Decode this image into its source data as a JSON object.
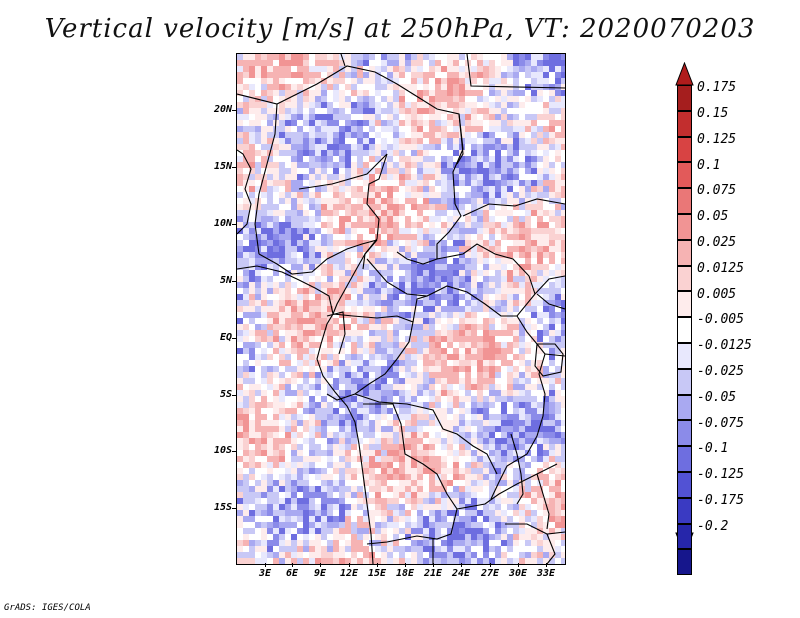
{
  "title": "Vertical velocity [m/s] at 250hPa, VT: 2020070203",
  "credit": "GrADS: IGES/COLA",
  "lat_labels": [
    "20N",
    "15N",
    "10N",
    "5N",
    "EQ",
    "5S",
    "10S",
    "15S"
  ],
  "lon_labels": [
    "3E",
    "6E",
    "9E",
    "12E",
    "15E",
    "18E",
    "21E",
    "24E",
    "27E",
    "30E",
    "33E"
  ],
  "colorbar": {
    "labels": [
      "0.175",
      "0.15",
      "0.125",
      "0.1",
      "0.075",
      "0.05",
      "0.025",
      "0.0125",
      "0.005",
      "-0.005",
      "-0.0125",
      "-0.025",
      "-0.05",
      "-0.075",
      "-0.1",
      "-0.125",
      "-0.175",
      "-0.2"
    ],
    "colors": [
      "#a51e1e",
      "#c22e2e",
      "#d84343",
      "#e25a5a",
      "#ea7777",
      "#f19494",
      "#f6b3b3",
      "#fad2d2",
      "#feecec",
      "#ffffff",
      "#e8e8fd",
      "#c8c8f6",
      "#a9a9f1",
      "#8b8be9",
      "#6e6ee0",
      "#5252d4",
      "#3a3ac2",
      "#2626aa",
      "#16168c"
    ],
    "top_color": "#b01c1c",
    "bottom_color": "#1a0f9a"
  }
}
